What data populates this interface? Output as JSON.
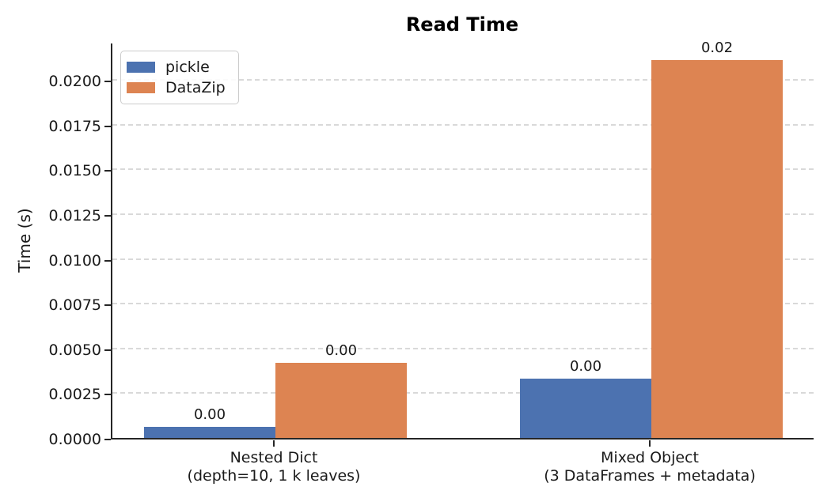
{
  "chart_data": {
    "type": "bar",
    "title": "Read Time",
    "xlabel": "",
    "ylabel": "Time (s)",
    "categories": [
      [
        "Nested Dict",
        "(depth=10, 1 k leaves)"
      ],
      [
        "Mixed Object",
        "(3 DataFrames + metadata)"
      ]
    ],
    "series": [
      {
        "name": "pickle",
        "color": "#4C72B0",
        "values": [
          0.0006,
          0.0033
        ],
        "bar_labels": [
          "0.00",
          "0.00"
        ]
      },
      {
        "name": "DataZip",
        "color": "#DD8452",
        "values": [
          0.0042,
          0.0211
        ],
        "bar_labels": [
          "0.00",
          "0.02"
        ]
      }
    ],
    "ytick_values": [
      0.0,
      0.0025,
      0.005,
      0.0075,
      0.01,
      0.0125,
      0.015,
      0.0175,
      0.02
    ],
    "ytick_labels": [
      "0.0000",
      "0.0025",
      "0.0050",
      "0.0075",
      "0.0100",
      "0.0125",
      "0.0150",
      "0.0175",
      "0.0200"
    ],
    "ylim": [
      0,
      0.02212
    ],
    "grid": "horizontal-dashed",
    "legend_position": "upper-left",
    "colors": {
      "pickle_bar": "#4C72B0",
      "datazip_bar": "#DD8452",
      "gridline": "#d9d9d9",
      "spine": "#262626"
    }
  }
}
